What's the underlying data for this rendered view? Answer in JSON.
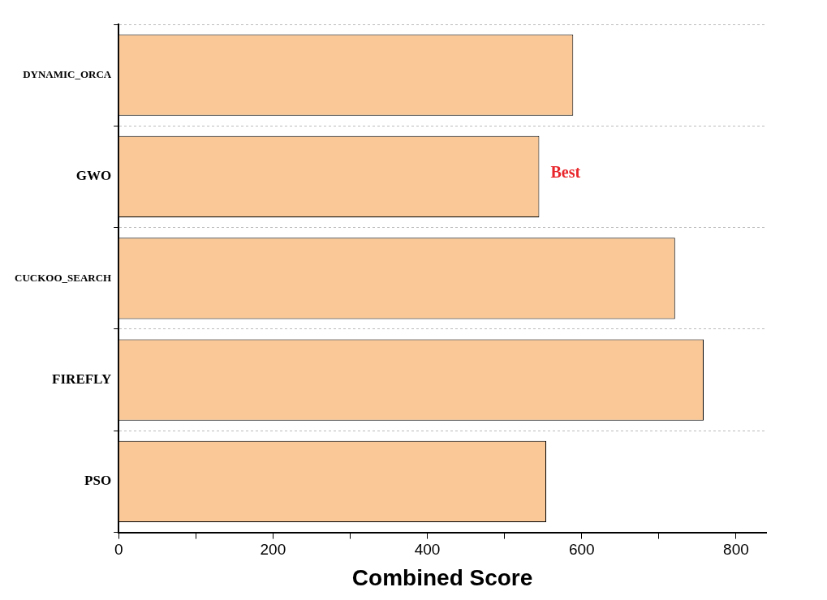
{
  "chart_data": {
    "type": "bar",
    "orientation": "horizontal",
    "xlabel": "Combined Score",
    "categories": [
      "DYNAMIC_ORCA",
      "GWO",
      "CUCKOO_SEARCH",
      "FIREFLY",
      "PSO"
    ],
    "values": [
      589,
      545,
      721,
      758,
      554
    ],
    "color": "#f9c896",
    "xlim": [
      0,
      839
    ],
    "xticks": [
      0,
      {
        "value": 100,
        "label": null
      },
      200,
      {
        "value": 300,
        "label": null
      },
      400,
      {
        "value": 500,
        "label": null
      },
      600,
      {
        "value": 700,
        "label": null
      },
      800
    ],
    "grid": "y",
    "annotations": [
      {
        "text": "Best",
        "x": 545,
        "y": "GWO"
      }
    ]
  }
}
